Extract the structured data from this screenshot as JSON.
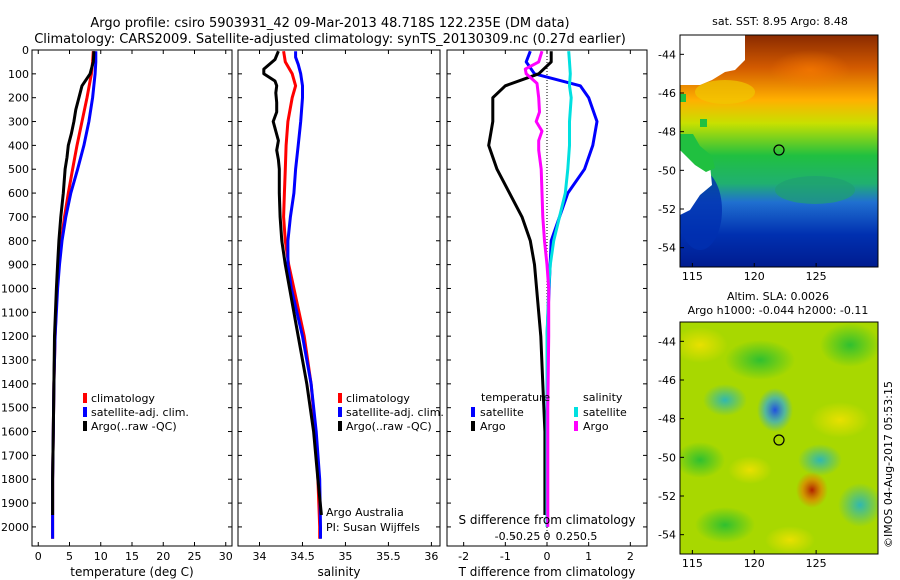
{
  "header": {
    "line1": "Argo profile: csiro 5903931_42 09-Mar-2013 48.718S 122.235E (DM data)",
    "line2": "Climatology: CARS2009. Satellite-adjusted climatology: synTS_20130309.nc (0.27d earlier)"
  },
  "credit": "©IMOS 04-Aug-2017 05:53:15",
  "colors": {
    "climatology": "#ff0000",
    "satellite": "#0000ff",
    "argo": "#000000",
    "satellite_salinity": "#00e0e0",
    "argo_salinity": "#ff00ff"
  },
  "chart_data": [
    {
      "type": "line",
      "id": "temperature",
      "xlabel": "temperature (deg C)",
      "ylabel": "",
      "xlim": [
        -1,
        31
      ],
      "ylim": [
        2080,
        0
      ],
      "xticks": [
        0,
        5,
        10,
        15,
        20,
        25,
        30
      ],
      "xtick_labels": [
        "0",
        "5",
        "10",
        "15",
        "20",
        "25",
        "30"
      ],
      "yticks": [
        0,
        100,
        200,
        300,
        400,
        500,
        600,
        700,
        800,
        900,
        1000,
        1100,
        1200,
        1300,
        1400,
        1500,
        1600,
        1700,
        1800,
        1900,
        2000
      ],
      "ytick_labels": [
        "0",
        "100",
        "200",
        "300",
        "400",
        "500",
        "600",
        "700",
        "800",
        "900",
        "1000",
        "1100",
        "1200",
        "1300",
        "1400",
        "1500",
        "1600",
        "1700",
        "1800",
        "1900",
        "2000"
      ],
      "legend": [
        {
          "label": "climatology",
          "color": "#ff0000"
        },
        {
          "label": "satellite-adj. clim.",
          "color": "#0000ff"
        },
        {
          "label": "Argo(..raw -QC)",
          "color": "#000000"
        }
      ],
      "series": [
        {
          "name": "climatology",
          "color": "#ff0000",
          "depth": [
            5,
            50,
            100,
            200,
            300,
            400,
            500,
            600,
            700,
            800,
            900,
            1000,
            1200,
            1400,
            1600,
            1800,
            2000,
            2050
          ],
          "values": [
            8.8,
            8.7,
            8.5,
            7.8,
            7.0,
            6.2,
            5.5,
            4.8,
            4.2,
            3.7,
            3.3,
            3.0,
            2.7,
            2.5,
            2.4,
            2.3,
            2.3,
            2.3
          ]
        },
        {
          "name": "satellite-adj. clim.",
          "color": "#0000ff",
          "depth": [
            5,
            50,
            100,
            200,
            300,
            400,
            500,
            600,
            700,
            800,
            900,
            1000,
            1200,
            1400,
            1600,
            1800,
            2000,
            2050
          ],
          "values": [
            9.2,
            9.2,
            9.1,
            8.7,
            8.1,
            7.3,
            6.3,
            5.2,
            4.4,
            3.8,
            3.4,
            3.1,
            2.7,
            2.5,
            2.4,
            2.3,
            2.3,
            2.3
          ]
        },
        {
          "name": "Argo(..raw -QC)",
          "color": "#000000",
          "depth": [
            5,
            50,
            100,
            150,
            200,
            250,
            300,
            350,
            400,
            450,
            500,
            600,
            700,
            800,
            900,
            1000,
            1200,
            1400,
            1600,
            1800,
            1950
          ],
          "values": [
            8.9,
            8.8,
            8.3,
            7.0,
            6.5,
            6.0,
            5.7,
            5.3,
            4.8,
            4.6,
            4.3,
            4.0,
            3.6,
            3.3,
            3.1,
            2.9,
            2.6,
            2.5,
            2.4,
            2.3,
            2.3
          ]
        }
      ]
    },
    {
      "type": "line",
      "id": "salinity",
      "xlabel": "salinity",
      "ylabel": "",
      "xlim": [
        33.75,
        36.1
      ],
      "ylim": [
        2080,
        0
      ],
      "xticks": [
        34,
        34.5,
        35,
        35.5,
        36
      ],
      "xtick_labels": [
        "34",
        "34.5",
        "35",
        "35.5",
        "36"
      ],
      "annotation": [
        "Argo Australia",
        "PI: Susan Wijffels"
      ],
      "legend": [
        {
          "label": "climatology",
          "color": "#ff0000"
        },
        {
          "label": "satellite-adj. clim.",
          "color": "#0000ff"
        },
        {
          "label": "Argo(..raw -QC)",
          "color": "#000000"
        }
      ],
      "series": [
        {
          "name": "climatology",
          "color": "#ff0000",
          "depth": [
            5,
            50,
            100,
            150,
            200,
            300,
            400,
            500,
            600,
            700,
            800,
            900,
            1000,
            1200,
            1400,
            1600,
            1800,
            2000,
            2050
          ],
          "values": [
            34.28,
            34.3,
            34.38,
            34.42,
            34.38,
            34.33,
            34.31,
            34.3,
            34.29,
            34.28,
            34.3,
            34.34,
            34.4,
            34.52,
            34.6,
            34.65,
            34.68,
            34.7,
            34.7
          ]
        },
        {
          "name": "satellite-adj. clim.",
          "color": "#0000ff",
          "depth": [
            5,
            30,
            60,
            100,
            150,
            200,
            300,
            400,
            500,
            600,
            700,
            800,
            900,
            1000,
            1200,
            1400,
            1600,
            1800,
            2000,
            2050
          ],
          "values": [
            34.42,
            34.42,
            34.45,
            34.48,
            34.5,
            34.5,
            34.48,
            34.45,
            34.42,
            34.4,
            34.36,
            34.33,
            34.33,
            34.37,
            34.5,
            34.6,
            34.66,
            34.7,
            34.71,
            34.71
          ]
        },
        {
          "name": "Argo(..raw -QC)",
          "color": "#000000",
          "depth": [
            5,
            40,
            80,
            100,
            130,
            150,
            180,
            220,
            260,
            300,
            340,
            380,
            420,
            460,
            500,
            600,
            700,
            800,
            900,
            1000,
            1200,
            1400,
            1600,
            1800,
            1950
          ],
          "values": [
            34.22,
            34.18,
            34.05,
            34.05,
            34.18,
            34.2,
            34.19,
            34.2,
            34.2,
            34.16,
            34.19,
            34.22,
            34.2,
            34.22,
            34.23,
            34.23,
            34.24,
            34.26,
            34.3,
            34.35,
            34.45,
            34.55,
            34.63,
            34.68,
            34.72
          ]
        }
      ]
    },
    {
      "type": "line",
      "id": "difference",
      "xlabel": "T difference from climatology",
      "xlabel_top": "S difference from climatology",
      "xlim": [
        -2.4,
        2.4
      ],
      "ylim": [
        2080,
        0
      ],
      "xticks": [
        -2,
        -1,
        0,
        1,
        2
      ],
      "xtick_labels": [
        "-2",
        "-1",
        "0",
        "1",
        "2"
      ],
      "sticks": [
        -0.5,
        -0.25,
        0,
        0.25,
        0.5
      ],
      "stick_labels": [
        "-0.5",
        "-0.25",
        "0",
        "0.25",
        "0.5"
      ],
      "legend_temperature": {
        "title": "temperature",
        "items": [
          {
            "label": "satellite",
            "color": "#0000ff"
          },
          {
            "label": "Argo",
            "color": "#000000"
          }
        ]
      },
      "legend_salinity": {
        "title": "salinity",
        "items": [
          {
            "label": "satellite",
            "color": "#00e0e0"
          },
          {
            "label": "Argo",
            "color": "#ff00ff"
          }
        ]
      },
      "series": [
        {
          "name": "temperature satellite",
          "color": "#0000ff",
          "depth": [
            5,
            50,
            100,
            150,
            200,
            300,
            400,
            500,
            600,
            800,
            1000,
            1200,
            1500,
            1800,
            2000
          ],
          "values": [
            -0.4,
            -0.5,
            -0.3,
            0.8,
            1.0,
            1.2,
            1.1,
            0.9,
            0.5,
            0.1,
            0.05,
            0.0,
            0.0,
            0.0,
            0.0
          ]
        },
        {
          "name": "temperature Argo",
          "color": "#000000",
          "depth": [
            5,
            50,
            100,
            150,
            200,
            300,
            400,
            500,
            600,
            700,
            800,
            900,
            1000,
            1200,
            1400,
            1600,
            1800,
            1950
          ],
          "values": [
            0.1,
            0.1,
            -0.2,
            -1.0,
            -1.3,
            -1.3,
            -1.4,
            -1.2,
            -0.9,
            -0.6,
            -0.4,
            -0.3,
            -0.25,
            -0.15,
            -0.1,
            -0.05,
            -0.05,
            -0.05
          ]
        },
        {
          "name": "salinity satellite",
          "color": "#00e0e0",
          "depth": [
            5,
            50,
            100,
            150,
            200,
            300,
            400,
            500,
            600,
            700,
            800,
            900,
            1000,
            1200,
            1500,
            1800,
            2000
          ],
          "values": [
            0.26,
            0.27,
            0.28,
            0.27,
            0.29,
            0.27,
            0.27,
            0.25,
            0.22,
            0.15,
            0.08,
            0.04,
            0.02,
            0.0,
            0.0,
            0.0,
            0.0
          ]
        },
        {
          "name": "salinity Argo",
          "color": "#ff00ff",
          "depth": [
            5,
            50,
            80,
            100,
            140,
            200,
            260,
            300,
            340,
            380,
            420,
            500,
            600,
            700,
            800,
            900,
            1000,
            1200,
            1500,
            1800,
            2000
          ],
          "values": [
            -0.06,
            -0.1,
            -0.26,
            -0.25,
            -0.12,
            -0.1,
            -0.09,
            -0.13,
            -0.06,
            -0.1,
            -0.1,
            -0.07,
            -0.06,
            -0.05,
            -0.03,
            0.0,
            0.02,
            0.02,
            0.01,
            0.01,
            0.01
          ]
        }
      ]
    },
    {
      "type": "heatmap",
      "id": "sst_map",
      "title": "sat. SST: 8.95 Argo: 8.48",
      "xlim": [
        114,
        130
      ],
      "ylim": [
        -55,
        -43
      ],
      "xticks": [
        115,
        120,
        125
      ],
      "xtick_labels": [
        "115",
        "120",
        "125"
      ],
      "yticks": [
        -44,
        -46,
        -48,
        -50,
        -52,
        -54
      ],
      "ytick_labels": [
        "-44",
        "-46",
        "-48",
        "-50",
        "-52",
        "-54"
      ],
      "marker": {
        "lon": 122.235,
        "lat": -48.718
      }
    },
    {
      "type": "heatmap",
      "id": "sla_map",
      "title_line1": "Altim. SLA: 0.0026",
      "title_line2": "Argo h1000: -0.044 h2000: -0.11",
      "xlim": [
        114,
        130
      ],
      "ylim": [
        -55,
        -43
      ],
      "xticks": [
        115,
        120,
        125
      ],
      "xtick_labels": [
        "115",
        "120",
        "125"
      ],
      "yticks": [
        -44,
        -46,
        -48,
        -50,
        -52,
        -54
      ],
      "ytick_labels": [
        "-44",
        "-46",
        "-48",
        "-50",
        "-52",
        "-54"
      ],
      "marker": {
        "lon": 122.235,
        "lat": -48.718
      }
    }
  ]
}
